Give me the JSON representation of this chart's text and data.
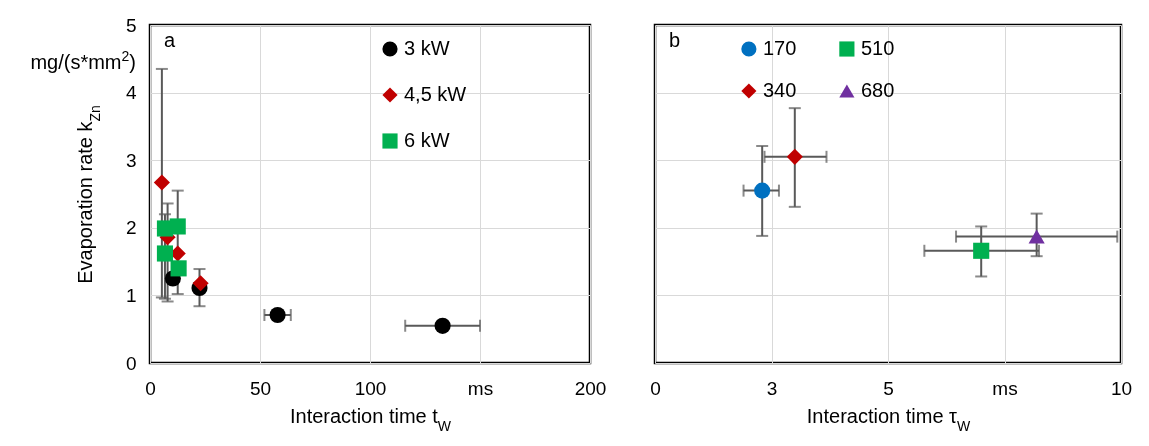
{
  "chart_data": [
    {
      "type": "scatter",
      "xlabel": "Interaction time t$_{W}$",
      "ylabel": "Evaporation rate k$_{Zn}$",
      "annotations": [
        "a",
        "mg/(s*mm$^{2}$)"
      ],
      "xlim": [
        0,
        200
      ],
      "xticks": [
        0,
        50,
        100,
        {
          "value": 150,
          "label": "ms"
        },
        200
      ],
      "ylim": [
        0,
        5
      ],
      "yticks": [
        0,
        1,
        2,
        3,
        4,
        5
      ],
      "grid": true,
      "legend": "top right",
      "series": [
        {
          "name": "3 kW",
          "color": "#000000",
          "marker": "circle",
          "x": [
            10.4,
            22.5,
            58,
            133
          ],
          "values": [
            1.25,
            1.11,
            0.71,
            0.55
          ],
          "errors": [
            null,
            [
              0.84,
              1.39
            ],
            null,
            null
          ],
          "xerrors": [
            null,
            null,
            [
              52,
              64
            ],
            [
              116,
              150
            ]
          ]
        },
        {
          "name": "4,5 kW",
          "color": "#c00000",
          "marker": "diamond",
          "x": [
            5.4,
            8,
            12.6,
            23
          ],
          "values": [
            2.67,
            1.86,
            1.62,
            1.18
          ],
          "errors": [
            [
              0.97,
              4.35
            ],
            [
              0.91,
              2.36
            ],
            null,
            null
          ]
        },
        {
          "name": "6 kW",
          "color": "#00b050",
          "marker": "square",
          "x": [
            6.8,
            12.6,
            6.8,
            13
          ],
          "values": [
            1.99,
            2.02,
            1.62,
            1.4
          ],
          "errors": [
            [
              0.95,
              2.2
            ],
            [
              1.02,
              2.55
            ],
            null,
            null
          ]
        }
      ]
    },
    {
      "type": "scatter",
      "xlabel": "Interaction time τ$_{W}$",
      "annotations": [
        "b"
      ],
      "xlim": [
        0,
        10
      ],
      "xticks": [
        0,
        {
          "value": 2.5,
          "label": "3"
        },
        5,
        {
          "value": 7.5,
          "label": "ms"
        },
        10
      ],
      "ylim": [
        0,
        5
      ],
      "yticks": [
        0,
        1,
        2,
        3,
        4,
        5
      ],
      "tick_labels": "x",
      "grid": true,
      "legend": "top",
      "series": [
        {
          "name": "170",
          "color": "#0070c0",
          "marker": "circle",
          "x": [
            2.3
          ],
          "values": [
            2.55
          ],
          "errors": [
            [
              1.88,
              3.21
            ]
          ],
          "xerrors": [
            [
              1.9,
              2.66
            ]
          ]
        },
        {
          "name": "340",
          "color": "#c00000",
          "marker": "diamond",
          "x": [
            3.0
          ],
          "values": [
            3.05
          ],
          "errors": [
            [
              2.31,
              3.77
            ]
          ],
          "xerrors": [
            [
              2.35,
              3.68
            ]
          ]
        },
        {
          "name": "510",
          "color": "#00b050",
          "marker": "square",
          "x": [
            7.0
          ],
          "values": [
            1.66
          ],
          "errors": [
            [
              1.28,
              2.02
            ]
          ],
          "xerrors": [
            [
              5.78,
              8.24
            ]
          ]
        },
        {
          "name": "680",
          "color": "#7030a0",
          "marker": "triangle",
          "x": [
            8.19
          ],
          "values": [
            1.87
          ],
          "errors": [
            [
              1.58,
              2.21
            ]
          ],
          "xerrors": [
            [
              6.46,
              9.92
            ]
          ]
        }
      ]
    }
  ]
}
